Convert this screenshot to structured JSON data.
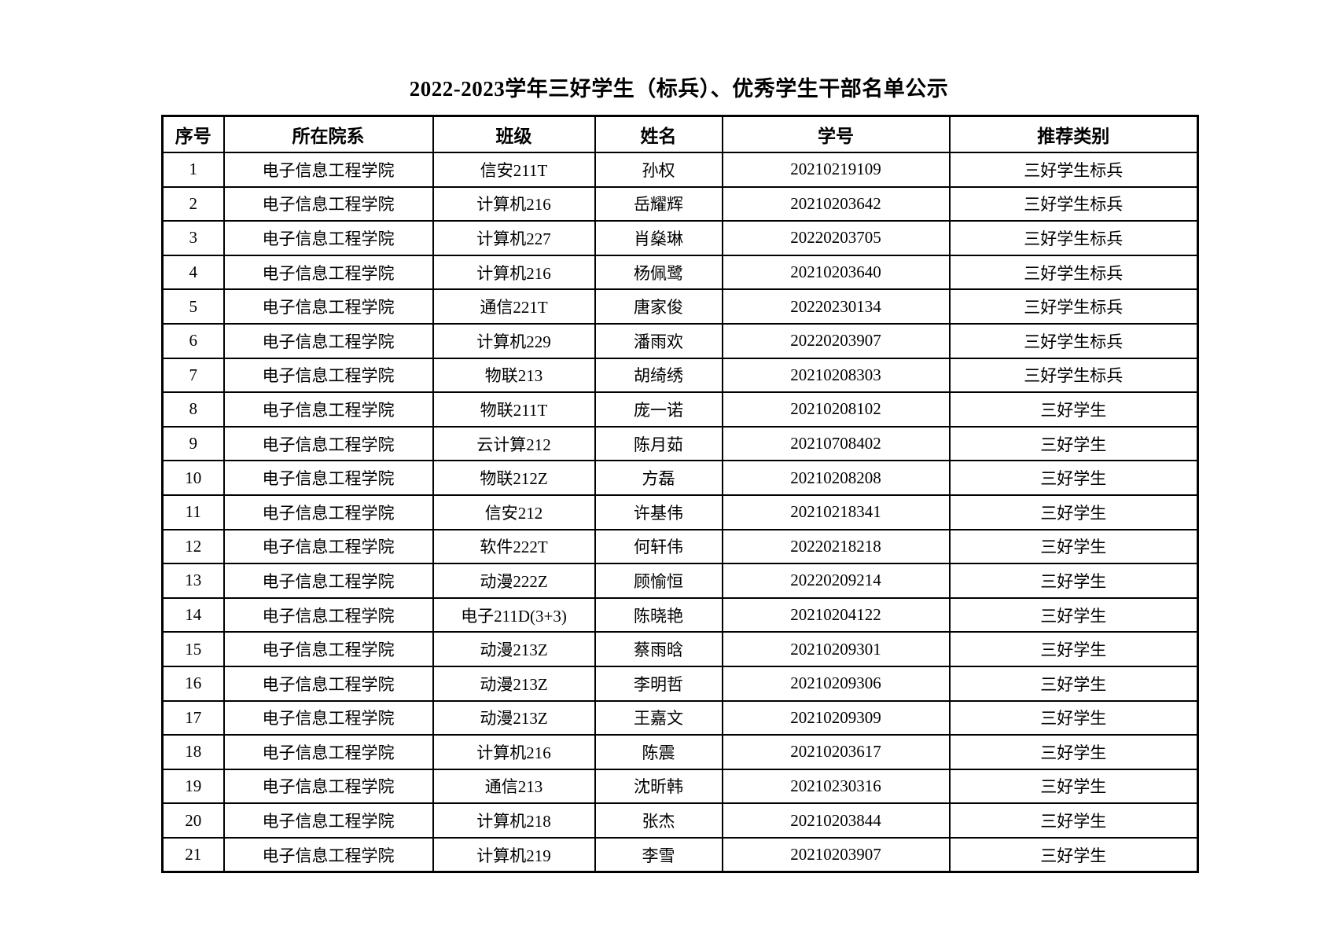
{
  "page": {
    "title": "2022-2023学年三好学生（标兵）、优秀学生干部名单公示"
  },
  "table": {
    "columns": [
      {
        "key": "seq",
        "label": "序号"
      },
      {
        "key": "department",
        "label": "所在院系"
      },
      {
        "key": "class",
        "label": "班级"
      },
      {
        "key": "name",
        "label": "姓名"
      },
      {
        "key": "student_id",
        "label": "学号"
      },
      {
        "key": "category",
        "label": "推荐类别"
      }
    ],
    "rows": [
      {
        "seq": "1",
        "department": "电子信息工程学院",
        "class": "信安211T",
        "name": "孙权",
        "student_id": "20210219109",
        "category": "三好学生标兵"
      },
      {
        "seq": "2",
        "department": "电子信息工程学院",
        "class": "计算机216",
        "name": "岳耀辉",
        "student_id": "20210203642",
        "category": "三好学生标兵"
      },
      {
        "seq": "3",
        "department": "电子信息工程学院",
        "class": "计算机227",
        "name": "肖燊琳",
        "student_id": "20220203705",
        "category": "三好学生标兵"
      },
      {
        "seq": "4",
        "department": "电子信息工程学院",
        "class": "计算机216",
        "name": "杨佩鹭",
        "student_id": "20210203640",
        "category": "三好学生标兵"
      },
      {
        "seq": "5",
        "department": "电子信息工程学院",
        "class": "通信221T",
        "name": "唐家俊",
        "student_id": "20220230134",
        "category": "三好学生标兵"
      },
      {
        "seq": "6",
        "department": "电子信息工程学院",
        "class": "计算机229",
        "name": "潘雨欢",
        "student_id": "20220203907",
        "category": "三好学生标兵"
      },
      {
        "seq": "7",
        "department": "电子信息工程学院",
        "class": "物联213",
        "name": "胡绮绣",
        "student_id": "20210208303",
        "category": "三好学生标兵"
      },
      {
        "seq": "8",
        "department": "电子信息工程学院",
        "class": "物联211T",
        "name": "庞一诺",
        "student_id": "20210208102",
        "category": "三好学生"
      },
      {
        "seq": "9",
        "department": "电子信息工程学院",
        "class": "云计算212",
        "name": "陈月茹",
        "student_id": "20210708402",
        "category": "三好学生"
      },
      {
        "seq": "10",
        "department": "电子信息工程学院",
        "class": "物联212Z",
        "name": "方磊",
        "student_id": "20210208208",
        "category": "三好学生"
      },
      {
        "seq": "11",
        "department": "电子信息工程学院",
        "class": "信安212",
        "name": "许基伟",
        "student_id": "20210218341",
        "category": "三好学生"
      },
      {
        "seq": "12",
        "department": "电子信息工程学院",
        "class": "软件222T",
        "name": "何轩伟",
        "student_id": "20220218218",
        "category": "三好学生"
      },
      {
        "seq": "13",
        "department": "电子信息工程学院",
        "class": "动漫222Z",
        "name": "顾愉恒",
        "student_id": "20220209214",
        "category": "三好学生"
      },
      {
        "seq": "14",
        "department": "电子信息工程学院",
        "class": "电子211D(3+3)",
        "name": "陈晓艳",
        "student_id": "20210204122",
        "category": "三好学生"
      },
      {
        "seq": "15",
        "department": "电子信息工程学院",
        "class": "动漫213Z",
        "name": "蔡雨晗",
        "student_id": "20210209301",
        "category": "三好学生"
      },
      {
        "seq": "16",
        "department": "电子信息工程学院",
        "class": "动漫213Z",
        "name": "李明哲",
        "student_id": "20210209306",
        "category": "三好学生"
      },
      {
        "seq": "17",
        "department": "电子信息工程学院",
        "class": "动漫213Z",
        "name": "王嘉文",
        "student_id": "20210209309",
        "category": "三好学生"
      },
      {
        "seq": "18",
        "department": "电子信息工程学院",
        "class": "计算机216",
        "name": "陈震",
        "student_id": "20210203617",
        "category": "三好学生"
      },
      {
        "seq": "19",
        "department": "电子信息工程学院",
        "class": "通信213",
        "name": "沈昕韩",
        "student_id": "20210230316",
        "category": "三好学生"
      },
      {
        "seq": "20",
        "department": "电子信息工程学院",
        "class": "计算机218",
        "name": "张杰",
        "student_id": "20210203844",
        "category": "三好学生"
      },
      {
        "seq": "21",
        "department": "电子信息工程学院",
        "class": "计算机219",
        "name": "李雪",
        "student_id": "20210203907",
        "category": "三好学生"
      }
    ]
  }
}
